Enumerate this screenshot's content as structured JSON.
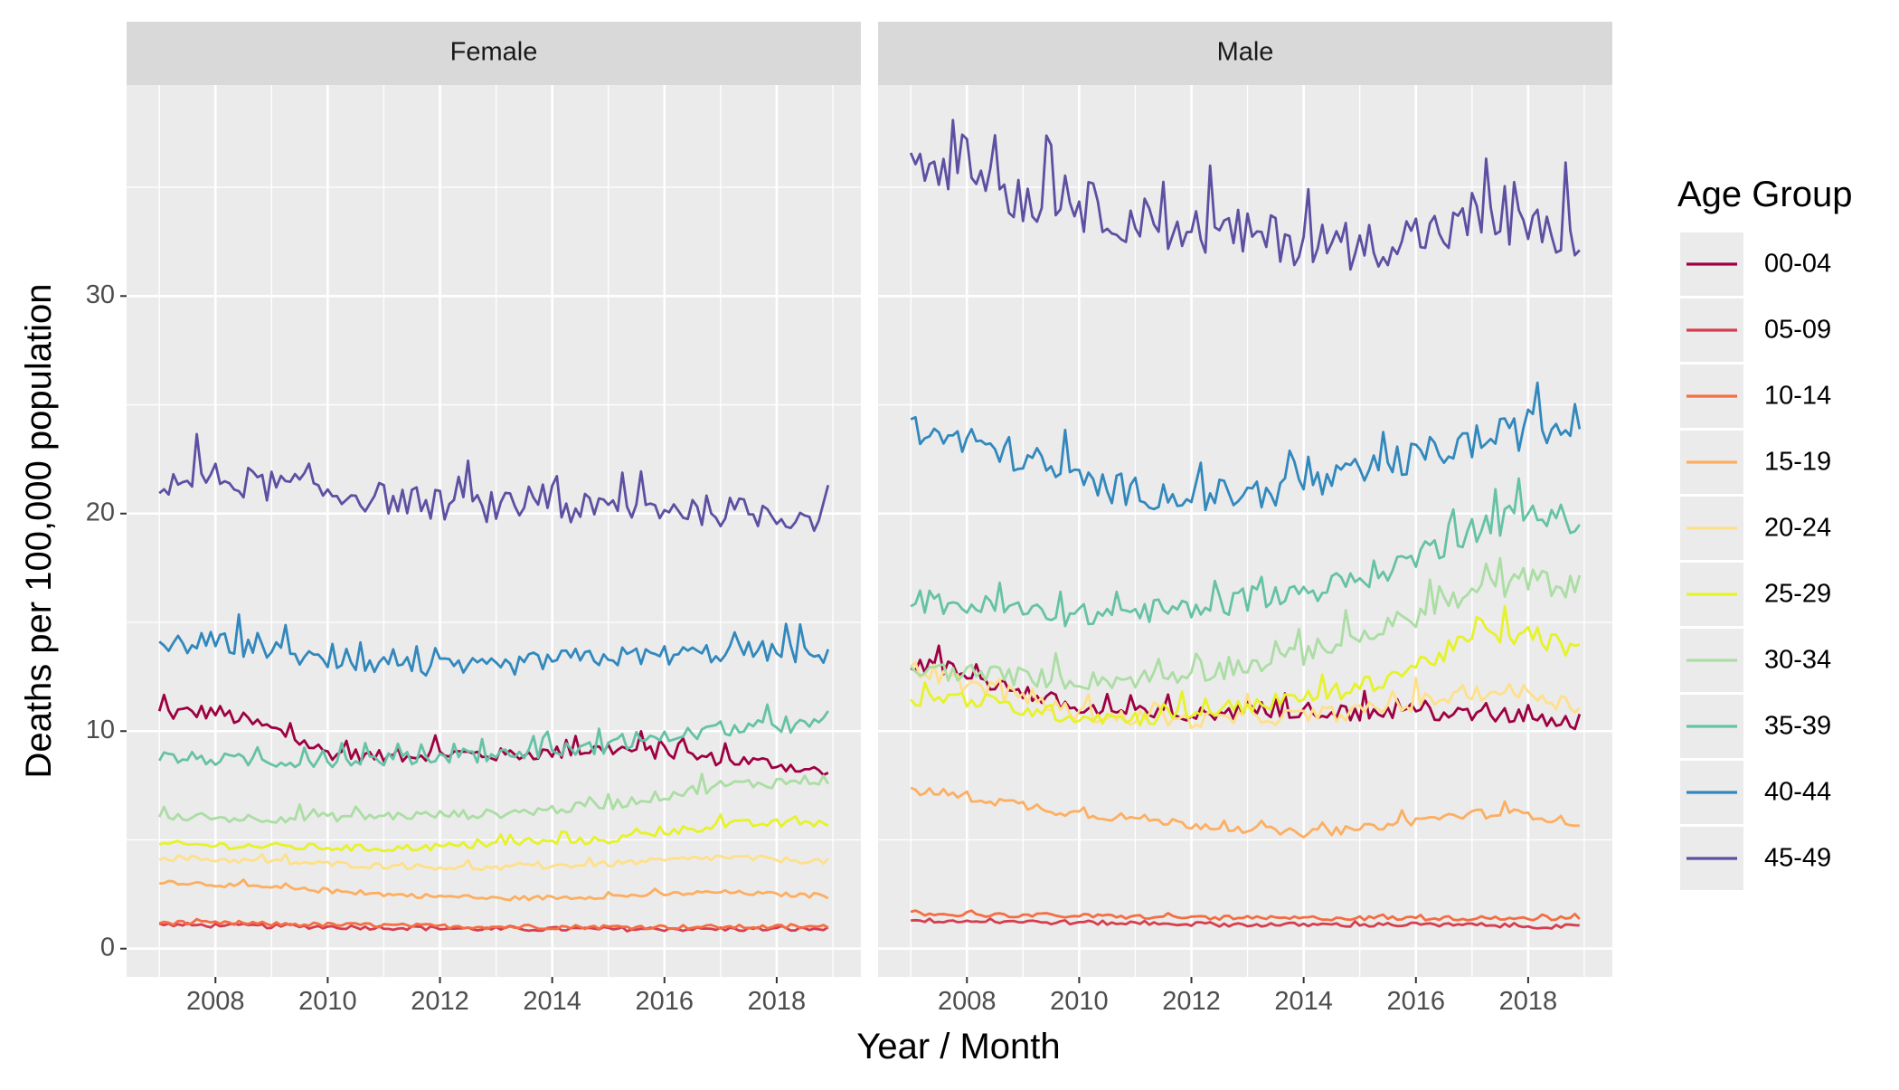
{
  "chart_data": {
    "type": "line",
    "facet_variable": "sex",
    "panels": [
      "Female",
      "Male"
    ],
    "xlabel": "Year / Month",
    "ylabel": "Deaths per 100,000 population",
    "x_ticks": [
      "2008",
      "2010",
      "2012",
      "2014",
      "2016",
      "2018"
    ],
    "y_ticks": [
      "0",
      "10",
      "20",
      "30"
    ],
    "xlim": [
      "2006-06",
      "2019-07"
    ],
    "ylim": [
      -1.3,
      39.7
    ],
    "grid": true,
    "x_start": "2007-01",
    "x_end": "2018-12",
    "frequency": "monthly",
    "legend": {
      "title": "Age Group",
      "position": "right",
      "entries": [
        "00-04",
        "05-09",
        "10-14",
        "15-19",
        "20-24",
        "25-29",
        "30-34",
        "35-39",
        "40-44",
        "45-49"
      ]
    },
    "series": [
      {
        "name": "00-04",
        "color": "#9E0142",
        "female": [
          [
            2007,
            10.8
          ],
          [
            2008,
            10.9
          ],
          [
            2009,
            10.1
          ],
          [
            2010,
            9.0
          ],
          [
            2011,
            8.8
          ],
          [
            2012,
            9.0
          ],
          [
            2013,
            8.9
          ],
          [
            2014,
            9.0
          ],
          [
            2015,
            9.2
          ],
          [
            2016,
            9.0
          ],
          [
            2017,
            8.7
          ],
          [
            2018,
            8.5
          ],
          [
            2019,
            8.0
          ]
        ],
        "male": [
          [
            2007,
            13.2
          ],
          [
            2008,
            12.6
          ],
          [
            2009,
            11.8
          ],
          [
            2010,
            11.0
          ],
          [
            2011,
            10.8
          ],
          [
            2012,
            10.7
          ],
          [
            2013,
            11.0
          ],
          [
            2014,
            11.0
          ],
          [
            2015,
            10.8
          ],
          [
            2016,
            10.9
          ],
          [
            2017,
            10.7
          ],
          [
            2018,
            10.7
          ],
          [
            2019,
            10.3
          ]
        ]
      },
      {
        "name": "05-09",
        "color": "#D53E4F",
        "female": [
          [
            2007,
            1.1
          ],
          [
            2010,
            1.0
          ],
          [
            2013,
            0.9
          ],
          [
            2016,
            0.9
          ],
          [
            2019,
            0.9
          ]
        ],
        "male": [
          [
            2007,
            1.3
          ],
          [
            2010,
            1.2
          ],
          [
            2013,
            1.1
          ],
          [
            2016,
            1.1
          ],
          [
            2019,
            1.0
          ]
        ]
      },
      {
        "name": "10-14",
        "color": "#F46D43",
        "female": [
          [
            2007,
            1.2
          ],
          [
            2010,
            1.1
          ],
          [
            2013,
            1.0
          ],
          [
            2016,
            1.0
          ],
          [
            2019,
            1.0
          ]
        ],
        "male": [
          [
            2007,
            1.6
          ],
          [
            2010,
            1.5
          ],
          [
            2013,
            1.4
          ],
          [
            2016,
            1.4
          ],
          [
            2019,
            1.4
          ]
        ]
      },
      {
        "name": "15-19",
        "color": "#FDAE61",
        "female": [
          [
            2007,
            3.1
          ],
          [
            2009,
            2.8
          ],
          [
            2011,
            2.5
          ],
          [
            2013,
            2.3
          ],
          [
            2015,
            2.4
          ],
          [
            2017,
            2.6
          ],
          [
            2019,
            2.4
          ]
        ],
        "male": [
          [
            2007,
            7.3
          ],
          [
            2008,
            7.0
          ],
          [
            2009,
            6.6
          ],
          [
            2010,
            6.2
          ],
          [
            2011,
            6.0
          ],
          [
            2012,
            5.7
          ],
          [
            2013,
            5.5
          ],
          [
            2014,
            5.3
          ],
          [
            2015,
            5.5
          ],
          [
            2016,
            5.9
          ],
          [
            2017,
            6.2
          ],
          [
            2018,
            6.2
          ],
          [
            2019,
            5.7
          ]
        ]
      },
      {
        "name": "20-24",
        "color": "#FEE08B",
        "female": [
          [
            2007,
            4.2
          ],
          [
            2009,
            4.0
          ],
          [
            2011,
            3.8
          ],
          [
            2013,
            3.7
          ],
          [
            2015,
            3.9
          ],
          [
            2017,
            4.2
          ],
          [
            2019,
            4.0
          ]
        ],
        "male": [
          [
            2007,
            12.8
          ],
          [
            2008,
            12.2
          ],
          [
            2009,
            11.5
          ],
          [
            2010,
            10.8
          ],
          [
            2011,
            10.6
          ],
          [
            2012,
            10.5
          ],
          [
            2013,
            10.6
          ],
          [
            2014,
            10.7
          ],
          [
            2015,
            10.9
          ],
          [
            2016,
            11.3
          ],
          [
            2017,
            11.8
          ],
          [
            2018,
            11.8
          ],
          [
            2019,
            11.0
          ]
        ]
      },
      {
        "name": "25-29",
        "color": "#E6F22A",
        "female": [
          [
            2007,
            4.8
          ],
          [
            2009,
            4.7
          ],
          [
            2011,
            4.6
          ],
          [
            2013,
            4.8
          ],
          [
            2015,
            5.0
          ],
          [
            2017,
            5.7
          ],
          [
            2019,
            5.8
          ]
        ],
        "male": [
          [
            2007,
            11.5
          ],
          [
            2008,
            11.5
          ],
          [
            2009,
            11.0
          ],
          [
            2010,
            10.7
          ],
          [
            2011,
            10.6
          ],
          [
            2012,
            10.8
          ],
          [
            2013,
            11.2
          ],
          [
            2014,
            11.5
          ],
          [
            2015,
            12.0
          ],
          [
            2016,
            13.0
          ],
          [
            2017,
            14.2
          ],
          [
            2018,
            14.5
          ],
          [
            2019,
            13.5
          ]
        ]
      },
      {
        "name": "30-34",
        "color": "#ABDDA4",
        "female": [
          [
            2007,
            6.0
          ],
          [
            2009,
            6.0
          ],
          [
            2011,
            6.1
          ],
          [
            2013,
            6.2
          ],
          [
            2015,
            6.6
          ],
          [
            2017,
            7.5
          ],
          [
            2019,
            7.8
          ]
        ],
        "male": [
          [
            2007,
            12.8
          ],
          [
            2008,
            12.7
          ],
          [
            2009,
            12.5
          ],
          [
            2010,
            12.3
          ],
          [
            2011,
            12.4
          ],
          [
            2012,
            12.6
          ],
          [
            2013,
            13.0
          ],
          [
            2014,
            13.5
          ],
          [
            2015,
            14.3
          ],
          [
            2016,
            15.3
          ],
          [
            2017,
            16.3
          ],
          [
            2018,
            17.0
          ],
          [
            2019,
            16.5
          ]
        ]
      },
      {
        "name": "35-39",
        "color": "#66C2A5",
        "female": [
          [
            2007,
            8.8
          ],
          [
            2009,
            8.6
          ],
          [
            2011,
            8.7
          ],
          [
            2013,
            8.9
          ],
          [
            2015,
            9.3
          ],
          [
            2017,
            10.1
          ],
          [
            2019,
            10.3
          ]
        ],
        "male": [
          [
            2007,
            16.0
          ],
          [
            2008,
            15.8
          ],
          [
            2009,
            15.5
          ],
          [
            2010,
            15.3
          ],
          [
            2011,
            15.5
          ],
          [
            2012,
            15.6
          ],
          [
            2013,
            16.0
          ],
          [
            2014,
            16.4
          ],
          [
            2015,
            17.0
          ],
          [
            2016,
            18.0
          ],
          [
            2017,
            19.3
          ],
          [
            2018,
            20.0
          ],
          [
            2019,
            19.5
          ]
        ]
      },
      {
        "name": "40-44",
        "color": "#3288BD",
        "female": [
          [
            2007,
            13.9
          ],
          [
            2008,
            14.1
          ],
          [
            2009,
            13.7
          ],
          [
            2010,
            13.2
          ],
          [
            2011,
            13.1
          ],
          [
            2012,
            12.9
          ],
          [
            2013,
            12.9
          ],
          [
            2014,
            13.3
          ],
          [
            2015,
            13.4
          ],
          [
            2016,
            13.5
          ],
          [
            2017,
            13.6
          ],
          [
            2018,
            13.7
          ],
          [
            2019,
            13.3
          ]
        ],
        "male": [
          [
            2007,
            23.8
          ],
          [
            2008,
            23.3
          ],
          [
            2009,
            22.6
          ],
          [
            2010,
            21.5
          ],
          [
            2011,
            21.0
          ],
          [
            2012,
            20.8
          ],
          [
            2013,
            20.9
          ],
          [
            2014,
            21.2
          ],
          [
            2015,
            21.8
          ],
          [
            2016,
            22.6
          ],
          [
            2017,
            23.3
          ],
          [
            2018,
            23.8
          ],
          [
            2019,
            24.0
          ]
        ]
      },
      {
        "name": "45-49",
        "color": "#5E4FA2",
        "female": [
          [
            2007,
            21.5
          ],
          [
            2008,
            21.6
          ],
          [
            2009,
            21.3
          ],
          [
            2010,
            21.0
          ],
          [
            2011,
            20.7
          ],
          [
            2012,
            20.4
          ],
          [
            2013,
            20.3
          ],
          [
            2014,
            20.2
          ],
          [
            2015,
            20.2
          ],
          [
            2016,
            20.3
          ],
          [
            2017,
            20.1
          ],
          [
            2018,
            20.0
          ],
          [
            2019,
            19.8
          ]
        ],
        "male": [
          [
            2007,
            36.5
          ],
          [
            2008,
            36.0
          ],
          [
            2009,
            34.5
          ],
          [
            2010,
            34.2
          ],
          [
            2011,
            33.5
          ],
          [
            2012,
            33.0
          ],
          [
            2013,
            32.8
          ],
          [
            2014,
            32.5
          ],
          [
            2015,
            32.3
          ],
          [
            2016,
            32.8
          ],
          [
            2017,
            33.2
          ],
          [
            2018,
            33.0
          ],
          [
            2019,
            32.8
          ]
        ]
      }
    ]
  }
}
